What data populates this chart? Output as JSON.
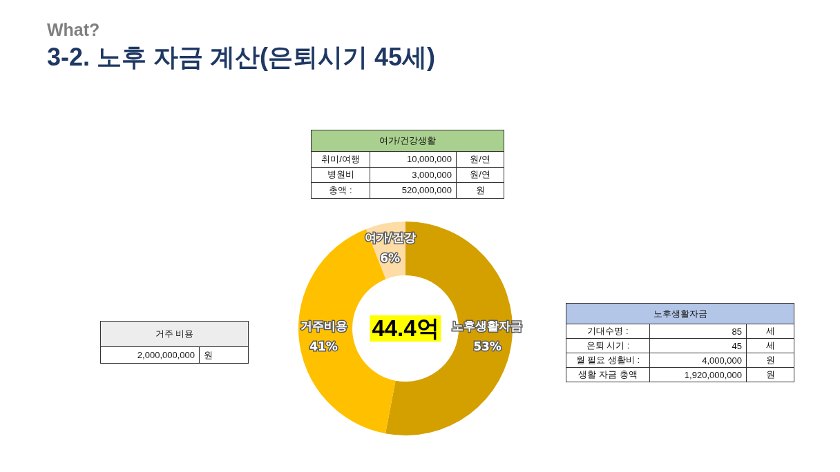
{
  "chart_data": [
    {
      "type": "donut",
      "title": "3-2. 노후 자금 계산(은퇴시기 45세)",
      "subtitle": "What?",
      "categories": [
        "노후생활자금",
        "거주비용",
        "여가/건강"
      ],
      "values": [
        53,
        41,
        6
      ],
      "colors": [
        "#d4a000",
        "#ffc000",
        "#fddca5"
      ],
      "value_labels": [
        "53%",
        "41%",
        "6%"
      ],
      "annotations": [
        "44.4억"
      ]
    },
    {
      "type": "other",
      "title": "여가/건강생활",
      "color": "#a9d08e",
      "y_categories": [
        "취미/여행",
        "병원비",
        "총액 :"
      ],
      "cell_labels": [
        [
          "10,000,000"
        ],
        [
          "3,000,000"
        ],
        [
          "520,000,000"
        ]
      ],
      "y2_categories": [
        "원/연",
        "원/연",
        "원"
      ]
    },
    {
      "type": "other",
      "title": "거주 비용",
      "color": "#ededed",
      "cell_labels": [
        [
          "2,000,000,000"
        ]
      ],
      "y2_categories": [
        "원"
      ]
    },
    {
      "type": "other",
      "title": "노후생활자금",
      "color": "#b4c6e7",
      "y_categories": [
        "기대수명 :",
        "은퇴 시기 :",
        "월 필요 생활비 :",
        "생활 자금 총액"
      ],
      "cell_labels": [
        [
          "85"
        ],
        [
          "45"
        ],
        [
          "4,000,000"
        ],
        [
          "1,920,000,000"
        ]
      ],
      "y2_categories": [
        "세",
        "세",
        "원",
        "원"
      ]
    }
  ]
}
